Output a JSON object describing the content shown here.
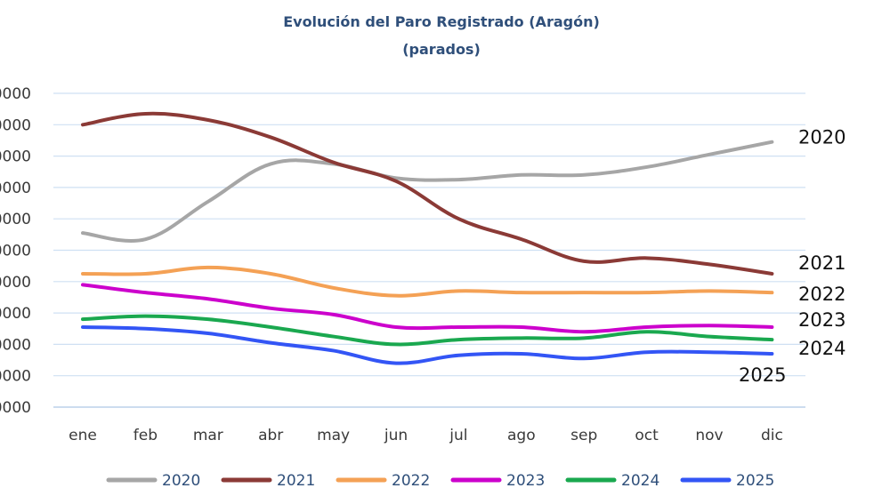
{
  "chart_data": {
    "type": "line",
    "title": "Evolución del Paro Registrado (Aragón)",
    "subtitle": "(parados)",
    "categories": [
      "ene",
      "feb",
      "mar",
      "abr",
      "may",
      "jun",
      "jul",
      "ago",
      "sep",
      "oct",
      "nov",
      "dic"
    ],
    "y_tick_labels": [
      "0000",
      "0000",
      "0000",
      "0000",
      "0000",
      "0000",
      "0000",
      "0000",
      "0000",
      "0000",
      "0000"
    ],
    "ylim": [
      0,
      10
    ],
    "grid": true,
    "legend_position": "bottom",
    "series": [
      {
        "name": "2020",
        "color": "#a6a6a6",
        "end_label": "2020",
        "values": [
          5.55,
          5.35,
          6.55,
          7.75,
          7.75,
          7.3,
          7.25,
          7.4,
          7.4,
          7.65,
          8.05,
          8.45
        ]
      },
      {
        "name": "2021",
        "color": "#8b3a36",
        "end_label": "2021",
        "values": [
          9.0,
          9.35,
          9.15,
          8.6,
          7.8,
          7.2,
          6.0,
          5.35,
          4.65,
          4.75,
          4.55,
          4.25
        ]
      },
      {
        "name": "2022",
        "color": "#f4a155",
        "end_label": "2022",
        "values": [
          4.25,
          4.25,
          4.45,
          4.25,
          3.8,
          3.55,
          3.7,
          3.65,
          3.65,
          3.65,
          3.7,
          3.65
        ]
      },
      {
        "name": "2023",
        "color": "#cc00cc",
        "end_label": "2023",
        "values": [
          3.9,
          3.65,
          3.45,
          3.15,
          2.95,
          2.55,
          2.55,
          2.55,
          2.4,
          2.55,
          2.6,
          2.55
        ]
      },
      {
        "name": "2024",
        "color": "#1aa84f",
        "end_label": "2024",
        "values": [
          2.8,
          2.9,
          2.8,
          2.55,
          2.25,
          2.0,
          2.15,
          2.2,
          2.2,
          2.4,
          2.25,
          2.15
        ]
      },
      {
        "name": "2025",
        "color": "#3355f5",
        "end_label": "2025",
        "values": [
          2.55,
          2.5,
          2.35,
          2.05,
          1.8,
          1.4,
          1.65,
          1.7,
          1.55,
          1.75,
          1.75,
          1.7
        ]
      }
    ]
  }
}
